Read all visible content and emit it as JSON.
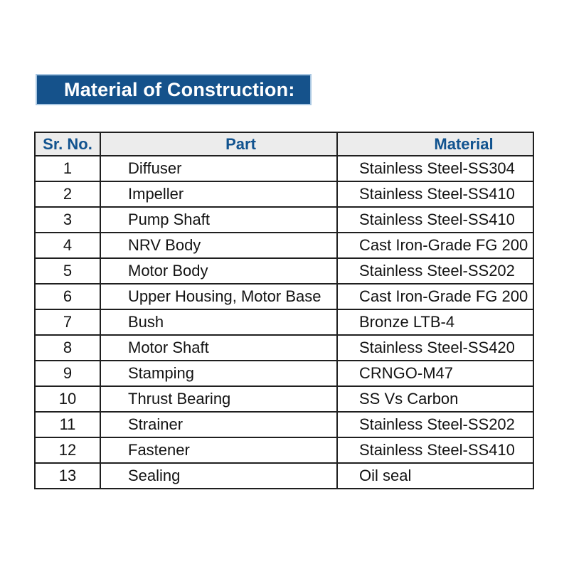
{
  "banner": {
    "title": "Material of Construction:"
  },
  "colors": {
    "page_bg": "#ffffff",
    "banner_bg": "#15528b",
    "banner_border": "#a9c7e2",
    "banner_text": "#ffffff",
    "header_bg": "#ececec",
    "header_text": "#11538f",
    "table_border": "#1f1f1f",
    "cell_text": "#131313"
  },
  "table": {
    "columns": [
      {
        "key": "sr",
        "label": "Sr. No."
      },
      {
        "key": "part",
        "label": "Part"
      },
      {
        "key": "material",
        "label": "Material"
      }
    ],
    "rows": [
      {
        "sr": "1",
        "part": "Diffuser",
        "material": "Stainless Steel-SS304"
      },
      {
        "sr": "2",
        "part": "Impeller",
        "material": "Stainless Steel-SS410"
      },
      {
        "sr": "3",
        "part": "Pump Shaft",
        "material": "Stainless Steel-SS410"
      },
      {
        "sr": "4",
        "part": "NRV Body",
        "material": "Cast Iron-Grade FG 200"
      },
      {
        "sr": "5",
        "part": "Motor Body",
        "material": "Stainless Steel-SS202"
      },
      {
        "sr": "6",
        "part": "Upper Housing, Motor Base",
        "material": "Cast Iron-Grade FG 200"
      },
      {
        "sr": "7",
        "part": "Bush",
        "material": "Bronze LTB-4"
      },
      {
        "sr": "8",
        "part": "Motor Shaft",
        "material": "Stainless Steel-SS420"
      },
      {
        "sr": "9",
        "part": "Stamping",
        "material": "CRNGO-M47"
      },
      {
        "sr": "10",
        "part": "Thrust Bearing",
        "material": "SS Vs Carbon"
      },
      {
        "sr": "11",
        "part": "Strainer",
        "material": "Stainless Steel-SS202"
      },
      {
        "sr": "12",
        "part": "Fastener",
        "material": "Stainless Steel-SS410"
      },
      {
        "sr": "13",
        "part": "Sealing",
        "material": "Oil seal"
      }
    ]
  }
}
